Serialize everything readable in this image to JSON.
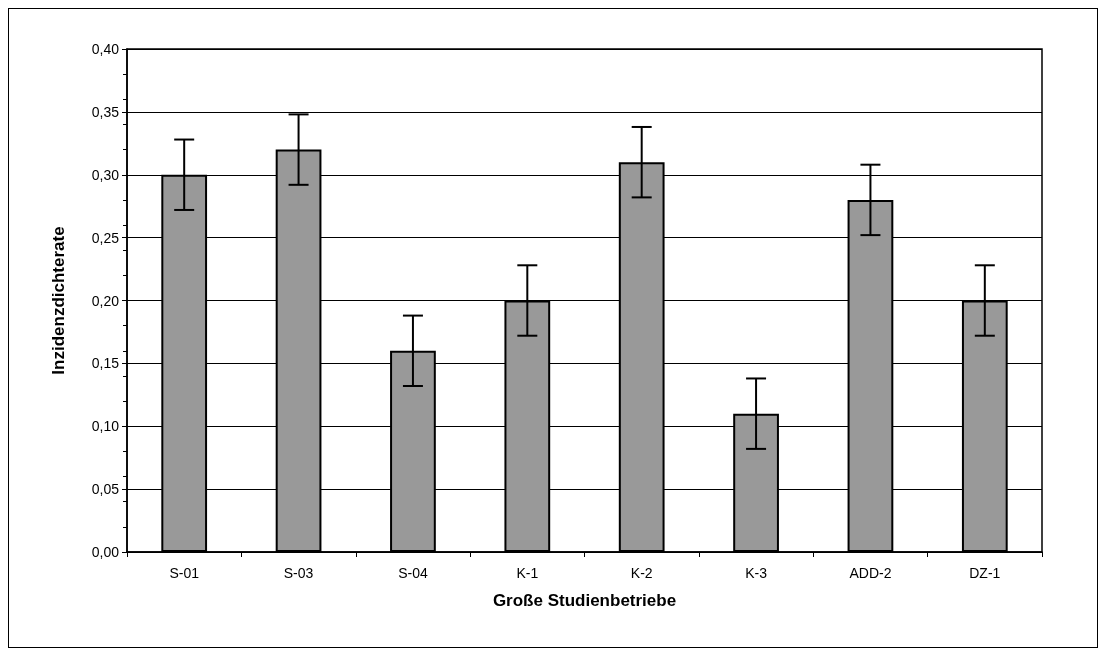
{
  "chart_data": {
    "type": "bar",
    "xlabel": "Große Studienbetriebe",
    "ylabel": "Inzidenzdichterate",
    "categories": [
      "S-01",
      "S-03",
      "S-04",
      "K-1",
      "K-2",
      "K-3",
      "ADD-2",
      "DZ-1"
    ],
    "values": [
      0.3,
      0.32,
      0.16,
      0.2,
      0.31,
      0.11,
      0.28,
      0.2
    ],
    "errors": [
      0.028,
      0.028,
      0.028,
      0.028,
      0.028,
      0.028,
      0.028,
      0.028
    ],
    "color": "#999999",
    "ylim": [
      0,
      0.4
    ],
    "yticks": [
      {
        "value": 0,
        "label": "0,00"
      },
      {
        "value": 0.05,
        "label": "0,05"
      },
      {
        "value": 0.1,
        "label": "0,10"
      },
      {
        "value": 0.15,
        "label": "0,15"
      },
      {
        "value": 0.2,
        "label": "0,20"
      },
      {
        "value": 0.25,
        "label": "0,25"
      },
      {
        "value": 0.3,
        "label": "0,30"
      },
      {
        "value": 0.35,
        "label": "0,35"
      },
      {
        "value": 0.4,
        "label": "0,40"
      }
    ],
    "grid": "y"
  }
}
